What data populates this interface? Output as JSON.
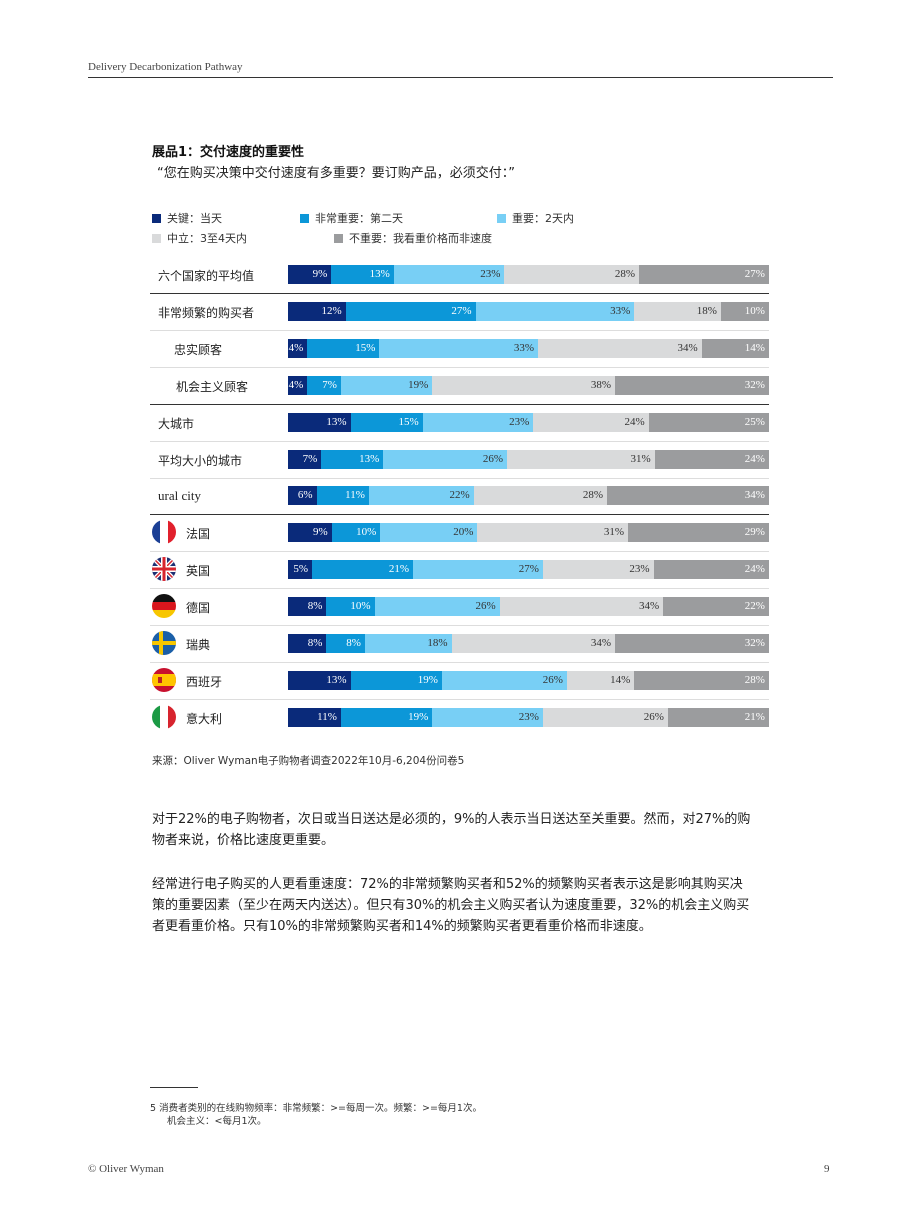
{
  "header": {
    "title": "Delivery Decarbonization Pathway"
  },
  "exhibit": {
    "title": "展品1：交付速度的重要性",
    "question": "“您在购买决策中交付速度有多重要？要订购产品，必须交付：”"
  },
  "legend": [
    {
      "label": "关键：当天",
      "color": "#0a2a7a"
    },
    {
      "label": "非常重要：第二天",
      "color": "#0c97d8"
    },
    {
      "label": "重要：2天内",
      "color": "#78cff5"
    },
    {
      "label": "中立：3至4天内",
      "color": "#d9dadb"
    },
    {
      "label": "不重要：我看重价格而非速度",
      "color": "#9b9c9e"
    }
  ],
  "chart_data": {
    "type": "bar",
    "stacked": true,
    "orientation": "horizontal",
    "title": "展品1：交付速度的重要性",
    "unit": "%",
    "series_names": [
      "关键：当天",
      "非常重要：第二天",
      "重要：2天内",
      "中立：3至4天内",
      "不重要：我看重价格而非速度"
    ],
    "rows": [
      {
        "label": "六个国家的平均值",
        "flag": "",
        "values": [
          9,
          13,
          23,
          28,
          27
        ]
      },
      {
        "label": "非常频繁的购买者",
        "flag": "",
        "values": [
          12,
          27,
          33,
          18,
          10
        ]
      },
      {
        "label": "忠实顾客",
        "flag": "",
        "values": [
          4,
          15,
          33,
          34,
          14
        ]
      },
      {
        "label": "机会主义顾客",
        "flag": "",
        "values": [
          4,
          7,
          19,
          38,
          32
        ]
      },
      {
        "label": "大城市",
        "flag": "",
        "values": [
          13,
          15,
          23,
          24,
          25
        ]
      },
      {
        "label": "平均大小的城市",
        "flag": "",
        "values": [
          7,
          13,
          26,
          31,
          24
        ]
      },
      {
        "label": "ural city",
        "flag": "",
        "values": [
          6,
          11,
          22,
          28,
          34
        ]
      },
      {
        "label": "法国",
        "flag": "fr",
        "values": [
          9,
          10,
          20,
          31,
          29
        ]
      },
      {
        "label": "英国",
        "flag": "uk",
        "values": [
          5,
          21,
          27,
          23,
          24
        ]
      },
      {
        "label": "德国",
        "flag": "de",
        "values": [
          8,
          10,
          26,
          34,
          22
        ]
      },
      {
        "label": "瑞典",
        "flag": "se",
        "values": [
          8,
          8,
          18,
          34,
          32
        ]
      },
      {
        "label": "西班牙",
        "flag": "es",
        "values": [
          13,
          19,
          26,
          14,
          28
        ]
      },
      {
        "label": "意大利",
        "flag": "it",
        "values": [
          11,
          19,
          23,
          26,
          21
        ]
      }
    ],
    "colors": [
      "#0a2a7a",
      "#0c97d8",
      "#78cff5",
      "#d9dadb",
      "#9b9c9e"
    ],
    "label_colors": [
      "#ffffff",
      "#ffffff",
      "#333333",
      "#333333",
      "#ffffff"
    ]
  },
  "source": "来源：Oliver Wyman电子购物者调查2022年10月-6,204份问卷5",
  "paragraphs": [
    "对于22%的电子购物者，次日或当日送达是必须的，9%的人表示当日送达至关重要。然而，对27%的购物者来说，价格比速度更重要。",
    "经常进行电子购买的人更看重速度：72%的非常频繁购买者和52%的频繁购买者表示这是影响其购买决策的重要因素（至少在两天内送达）。但只有30%的机会主义购买者认为速度重要，32%的机会主义购买者更看重价格。只有10%的非常频繁购买者和14%的频繁购买者更看重价格而非速度。"
  ],
  "footnote": {
    "line1": "5 消费者类别的在线购物频率：非常频繁：>=每周一次。频繁：>=每月1次。",
    "line2": "机会主义：<每月1次。"
  },
  "footer": {
    "left": "© Oliver Wyman",
    "page": "9"
  }
}
